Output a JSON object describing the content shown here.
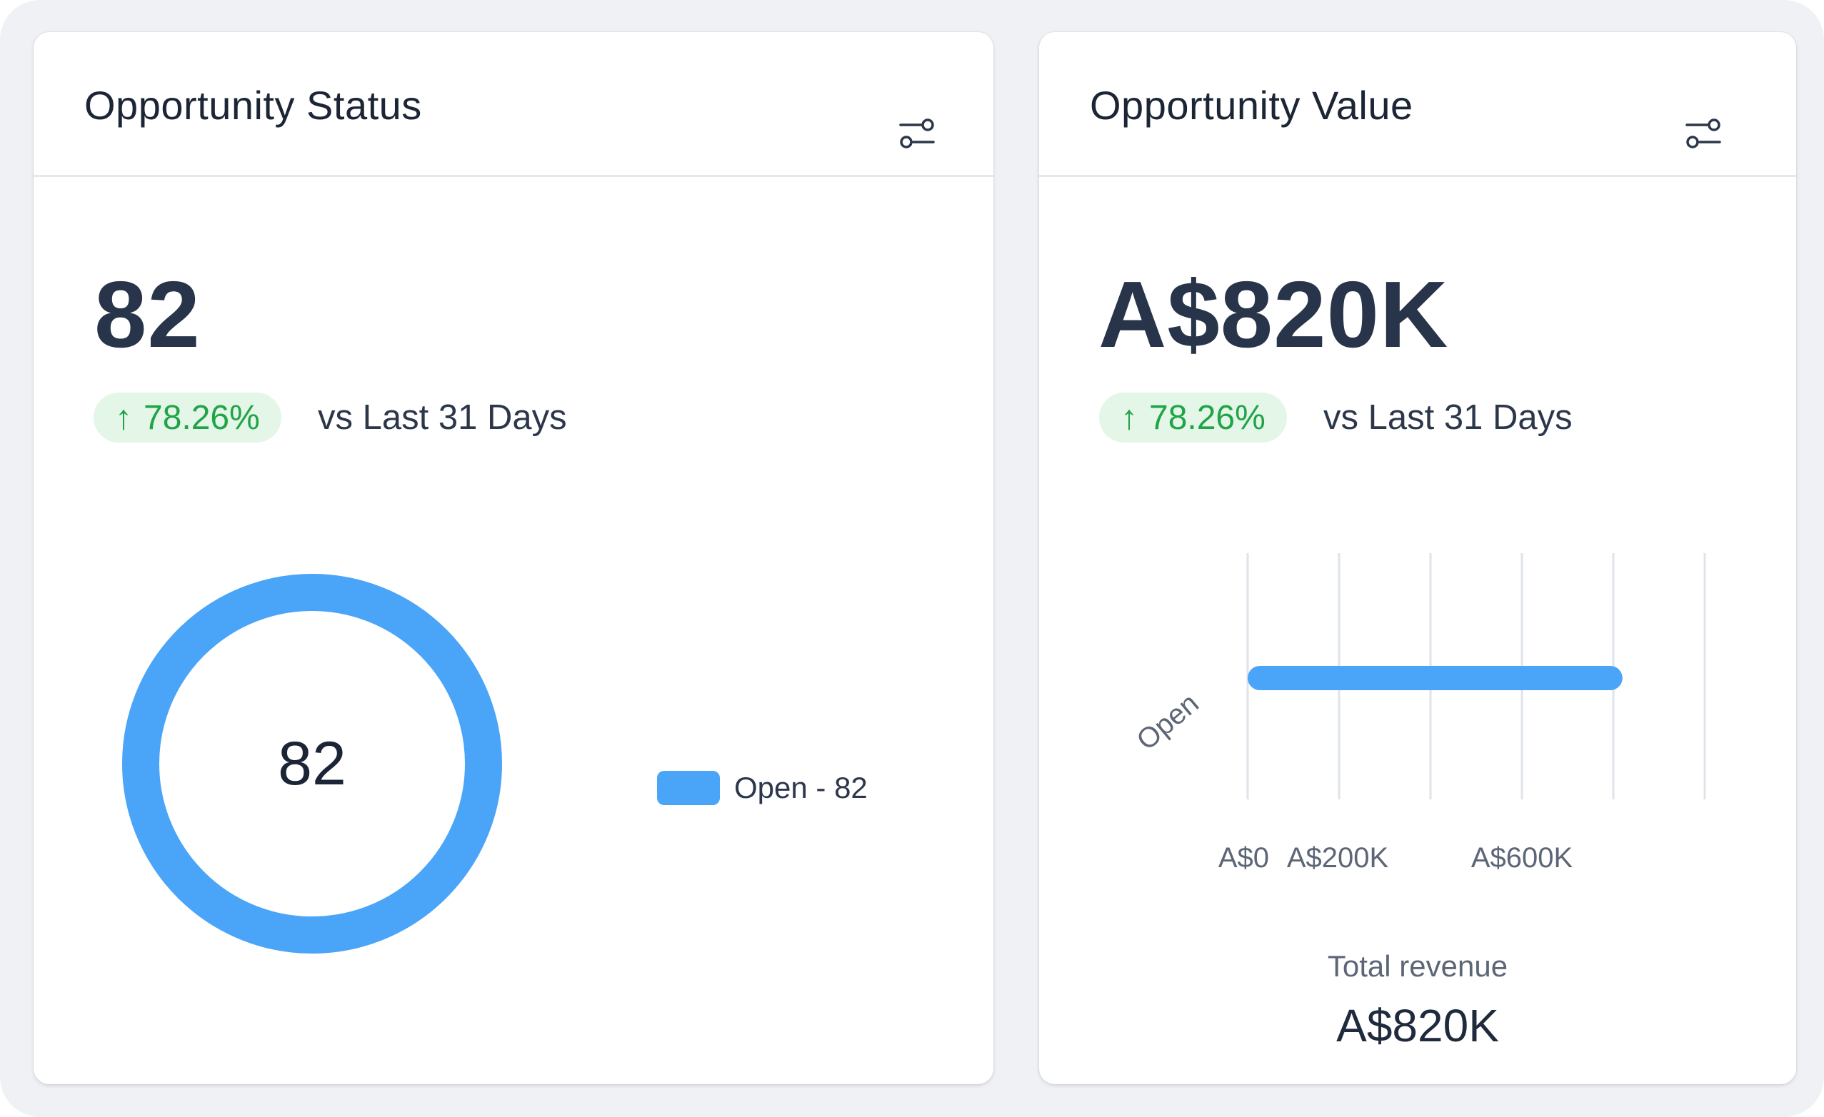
{
  "cards": [
    {
      "title": "Opportunity Status",
      "filter_icon": "sliders-icon",
      "metric": "82",
      "trend": {
        "arrow": "↑",
        "value": "78.26%",
        "direction": "up",
        "color": "#21a447"
      },
      "compare": "vs Last 31 Days",
      "donut": {
        "center_label": "82",
        "legend": [
          {
            "label": "Open - 82",
            "color": "#4aa4f8"
          }
        ]
      }
    },
    {
      "title": "Opportunity Value",
      "filter_icon": "sliders-icon",
      "metric": "A$820K",
      "trend": {
        "arrow": "↑",
        "value": "78.26%",
        "direction": "up",
        "color": "#21a447"
      },
      "compare": "vs Last 31 Days",
      "footer_label": "Total revenue",
      "footer_value": "A$820K"
    }
  ],
  "colors": {
    "accent": "#4aa4f8",
    "trend_up": "#21a447",
    "trend_bg": "#e3f6e8",
    "grid": "#dfe3ea"
  },
  "chart_data": [
    {
      "type": "pie",
      "subtype": "donut",
      "categories": [
        "Open"
      ],
      "values": [
        82
      ],
      "center_label": "82",
      "legend": [
        "Open - 82"
      ],
      "legend_position": "right"
    },
    {
      "type": "bar",
      "orientation": "horizontal",
      "categories": [
        "Open"
      ],
      "values": [
        820000
      ],
      "xlim": [
        0,
        1000000
      ],
      "gridlines": [
        0,
        200000,
        400000,
        600000,
        800000,
        1000000
      ],
      "tick_labels": [
        {
          "value": 0,
          "label": "A$0"
        },
        {
          "value": 200000,
          "label": "A$200K"
        },
        {
          "value": 600000,
          "label": "A$600K"
        }
      ],
      "grid": true,
      "xlabel": "Total revenue",
      "total": "A$820K"
    }
  ]
}
